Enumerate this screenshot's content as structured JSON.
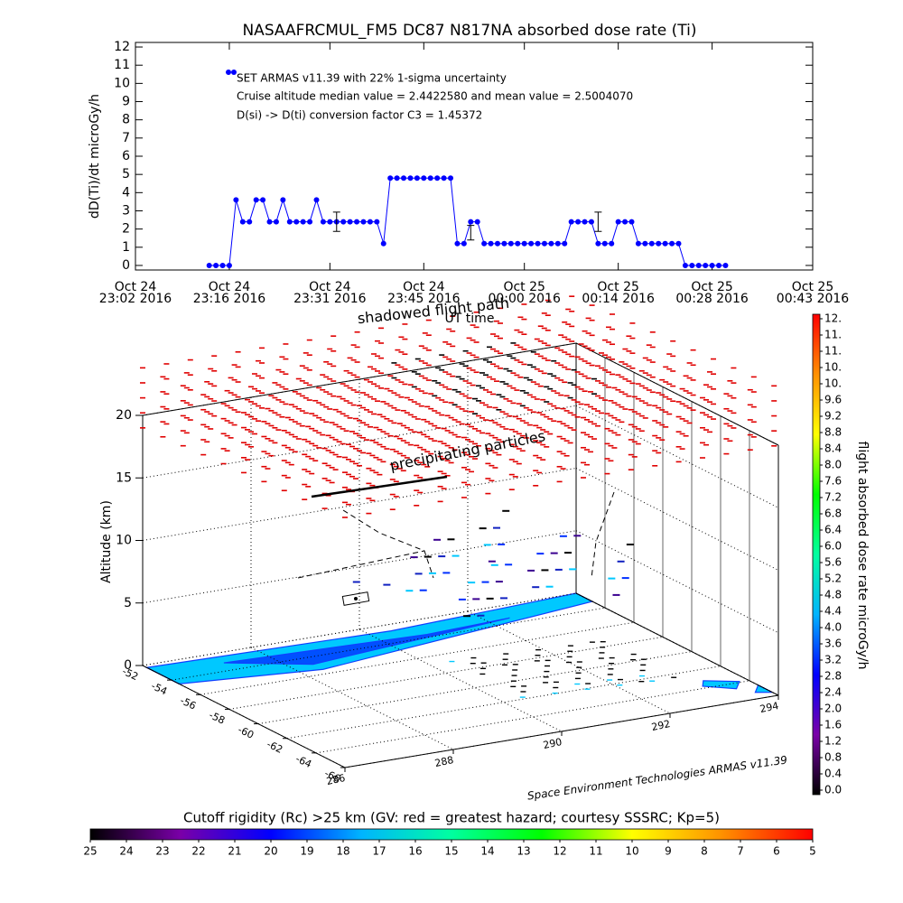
{
  "chart_data": [
    {
      "type": "line",
      "title": "NASAAFRCMUL_FM5 DC87 N817NA absorbed dose rate (Ti)",
      "ylabel": "dD(Ti)/dt microGy/h",
      "xlabel": "UT time",
      "xlim": [
        "2016-10-24T23:02",
        "2016-10-25T00:43"
      ],
      "xticks": [
        {
          "value": "2016-10-24T23:02",
          "label": [
            "Oct 24",
            "23:02 2016"
          ]
        },
        {
          "value": "2016-10-24T23:16",
          "label": [
            "Oct 24",
            "23:16 2016"
          ]
        },
        {
          "value": "2016-10-24T23:31",
          "label": [
            "Oct 24",
            "23:31 2016"
          ]
        },
        {
          "value": "2016-10-24T23:45",
          "label": [
            "Oct 24",
            "23:45 2016"
          ]
        },
        {
          "value": "2016-10-25T00:00",
          "label": [
            "Oct 25",
            "00:00 2016"
          ]
        },
        {
          "value": "2016-10-25T00:14",
          "label": [
            "Oct 25",
            "00:14 2016"
          ]
        },
        {
          "value": "2016-10-25T00:28",
          "label": [
            "Oct 25",
            "00:28 2016"
          ]
        },
        {
          "value": "2016-10-25T00:43",
          "label": [
            "Oct 25",
            "00:43 2016"
          ]
        }
      ],
      "ylim": [
        -0.25,
        12.25
      ],
      "yticks": [
        0,
        1,
        2,
        3,
        4,
        5,
        6,
        7,
        8,
        9,
        10,
        11,
        12
      ],
      "x": [
        "2016-10-24T23:13",
        "2016-10-24T23:14",
        "2016-10-24T23:15",
        "2016-10-24T23:16",
        "2016-10-24T23:17",
        "2016-10-24T23:18",
        "2016-10-24T23:19",
        "2016-10-24T23:20",
        "2016-10-24T23:21",
        "2016-10-24T23:22",
        "2016-10-24T23:23",
        "2016-10-24T23:24",
        "2016-10-24T23:25",
        "2016-10-24T23:26",
        "2016-10-24T23:27",
        "2016-10-24T23:28",
        "2016-10-24T23:29",
        "2016-10-24T23:30",
        "2016-10-24T23:31",
        "2016-10-24T23:32",
        "2016-10-24T23:33",
        "2016-10-24T23:34",
        "2016-10-24T23:35",
        "2016-10-24T23:36",
        "2016-10-24T23:37",
        "2016-10-24T23:38",
        "2016-10-24T23:39",
        "2016-10-24T23:40",
        "2016-10-24T23:41",
        "2016-10-24T23:42",
        "2016-10-24T23:43",
        "2016-10-24T23:44",
        "2016-10-24T23:45",
        "2016-10-24T23:46",
        "2016-10-24T23:47",
        "2016-10-24T23:48",
        "2016-10-24T23:49",
        "2016-10-24T23:50",
        "2016-10-24T23:51",
        "2016-10-24T23:52",
        "2016-10-24T23:53",
        "2016-10-24T23:54",
        "2016-10-24T23:55",
        "2016-10-24T23:56",
        "2016-10-24T23:57",
        "2016-10-24T23:58",
        "2016-10-24T23:59",
        "2016-10-25T00:00",
        "2016-10-25T00:01",
        "2016-10-25T00:02",
        "2016-10-25T00:03",
        "2016-10-25T00:04",
        "2016-10-25T00:05",
        "2016-10-25T00:06",
        "2016-10-25T00:07",
        "2016-10-25T00:08",
        "2016-10-25T00:09",
        "2016-10-25T00:10",
        "2016-10-25T00:11",
        "2016-10-25T00:12",
        "2016-10-25T00:13",
        "2016-10-25T00:14",
        "2016-10-25T00:15",
        "2016-10-25T00:16",
        "2016-10-25T00:17",
        "2016-10-25T00:18",
        "2016-10-25T00:19",
        "2016-10-25T00:20",
        "2016-10-25T00:21",
        "2016-10-25T00:22",
        "2016-10-25T00:23",
        "2016-10-25T00:24",
        "2016-10-25T00:25",
        "2016-10-25T00:26",
        "2016-10-25T00:27",
        "2016-10-25T00:28",
        "2016-10-25T00:29",
        "2016-10-25T00:30"
      ],
      "series": [
        {
          "name": "SET ARMAS v11.39 with 22% 1-sigma uncertainty",
          "color": "#0000ff",
          "values": [
            0,
            0,
            0,
            0,
            3.6,
            2.4,
            2.4,
            3.6,
            3.6,
            2.4,
            2.4,
            3.6,
            2.4,
            2.4,
            2.4,
            2.4,
            3.6,
            2.4,
            2.4,
            2.4,
            2.4,
            2.4,
            2.4,
            2.4,
            2.4,
            2.4,
            1.2,
            4.8,
            4.8,
            4.8,
            4.8,
            4.8,
            4.8,
            4.8,
            4.8,
            4.8,
            4.8,
            1.2,
            1.2,
            2.4,
            2.4,
            1.2,
            1.2,
            1.2,
            1.2,
            1.2,
            1.2,
            1.2,
            1.2,
            1.2,
            1.2,
            1.2,
            1.2,
            1.2,
            2.4,
            2.4,
            2.4,
            2.4,
            1.2,
            1.2,
            1.2,
            2.4,
            2.4,
            2.4,
            1.2,
            1.2,
            1.2,
            1.2,
            1.2,
            1.2,
            1.2,
            0,
            0,
            0,
            0,
            0,
            0,
            0
          ]
        }
      ],
      "error_bars": {
        "x": [
          "2016-10-24T23:32",
          "2016-10-24T23:52",
          "2016-10-25T00:11"
        ],
        "values": [
          2.4,
          1.8,
          2.4
        ],
        "errors": [
          0.53,
          0.4,
          0.53
        ]
      },
      "annotations": [
        "Cruise altitude median value = 2.4422580 and mean value = 2.5004070",
        "D(si) -> D(ti) conversion factor C3 = 1.45372"
      ]
    },
    {
      "type": "scene3d",
      "zlabel": "Altitude (km)",
      "xlim": [
        -52,
        -66
      ],
      "xticks": [
        -52,
        -54,
        -56,
        -58,
        -60,
        -62,
        -64,
        -66
      ],
      "ylim": [
        286,
        294
      ],
      "yticks": [
        286,
        288,
        290,
        292,
        294
      ],
      "zlim": [
        0,
        20
      ],
      "zticks": [
        0,
        5,
        10,
        15,
        20
      ],
      "annotations": [
        "shadowed flight path",
        "precipitating particles"
      ],
      "credit": "Space Environment Technologies ARMAS v11.39"
    },
    {
      "type": "colorbar",
      "orientation": "vertical",
      "title": "flight absorbed dose rate microGy/h",
      "lim": [
        0,
        11.6
      ],
      "ticks": [
        {
          "value": 0,
          "label": "0.0"
        },
        0.4,
        0.8,
        1.2,
        1.6,
        {
          "value": 2,
          "label": "2.0"
        },
        2.4,
        2.8,
        3.2,
        3.6,
        {
          "value": 4,
          "label": "4.0"
        },
        4.4,
        4.8,
        5.2,
        5.6,
        {
          "value": 6,
          "label": "6.0"
        },
        6.4,
        6.8,
        7.2,
        7.6,
        {
          "value": 8,
          "label": "8.0"
        },
        8.4,
        8.8,
        9.2,
        9.6,
        {
          "value": 10,
          "label": "10."
        },
        {
          "value": 10.4,
          "label": "10."
        },
        {
          "value": 10.8,
          "label": "11."
        },
        {
          "value": 11.2,
          "label": "11."
        },
        {
          "value": 11.6,
          "label": "12."
        }
      ],
      "colors": [
        "#000000",
        "#7a00a8",
        "#0000ff",
        "#00b4ff",
        "#00ffa0",
        "#00ff00",
        "#ffff00",
        "#ff9000",
        "#ff0000"
      ]
    },
    {
      "type": "colorbar",
      "orientation": "horizontal",
      "title": "Cutoff rigidity (Rc) >25 km (GV: red = greatest hazard; courtesy SSSRC; Kp=5)",
      "lim": [
        25,
        5
      ],
      "ticks": [
        25,
        24,
        23,
        22,
        21,
        20,
        19,
        18,
        17,
        16,
        15,
        14,
        13,
        12,
        11,
        10,
        9,
        8,
        7,
        6,
        5
      ],
      "colors": [
        "#000000",
        "#7a00a8",
        "#0000ff",
        "#00b4ff",
        "#00ffa0",
        "#00ff00",
        "#ffff00",
        "#ff9000",
        "#ff0000"
      ]
    }
  ]
}
